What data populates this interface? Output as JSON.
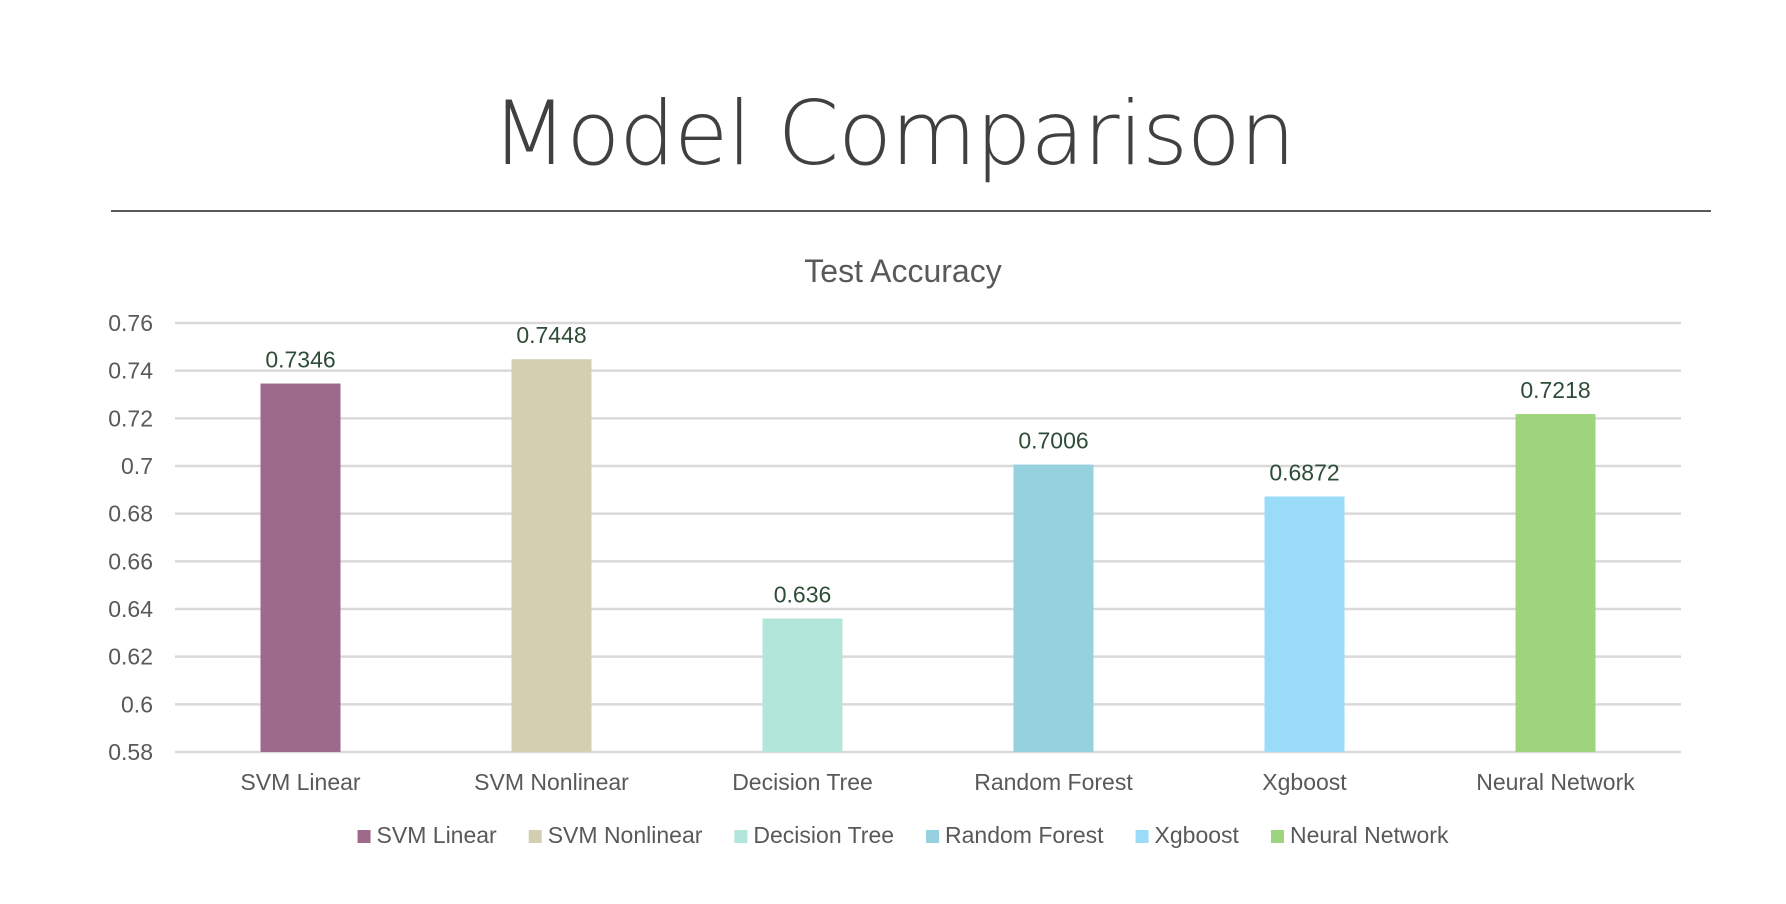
{
  "slide": {
    "title": "Model Comparison"
  },
  "chart_data": {
    "type": "bar",
    "title": "Test Accuracy",
    "xlabel": "",
    "ylabel": "",
    "categories": [
      "SVM Linear",
      "SVM Nonlinear",
      "Decision Tree",
      "Random Forest",
      "Xgboost",
      "Neural Network"
    ],
    "values": [
      0.7346,
      0.7448,
      0.636,
      0.7006,
      0.6872,
      0.7218
    ],
    "value_labels": [
      "0.7346",
      "0.7448",
      "0.636",
      "0.7006",
      "0.6872",
      "0.7218"
    ],
    "ylim": [
      0.58,
      0.76
    ],
    "yticks": [
      "0.58",
      "0.6",
      "0.62",
      "0.64",
      "0.66",
      "0.68",
      "0.7",
      "0.72",
      "0.74",
      "0.76"
    ],
    "colors": [
      "#9E6A8C",
      "#D3D0B2",
      "#B3E6DA",
      "#96D1E0",
      "#9ADCF8",
      "#9FD47F"
    ],
    "grid": true,
    "legend": "bottom",
    "data_label_color": "#2E4D37"
  }
}
